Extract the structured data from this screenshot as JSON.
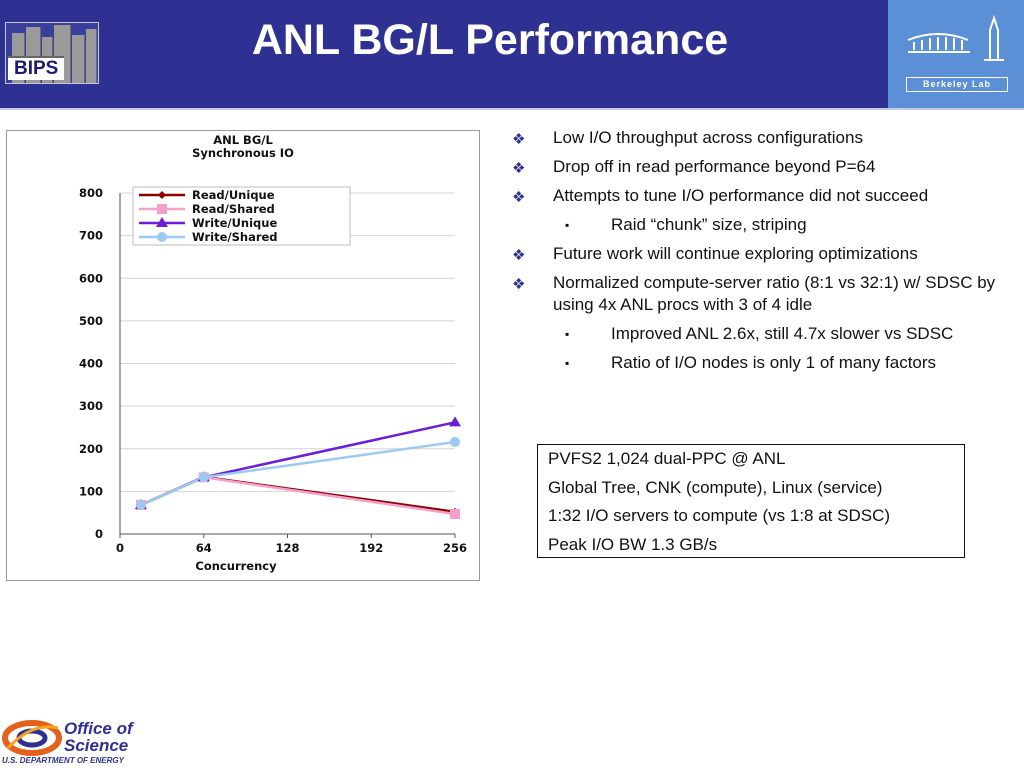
{
  "header": {
    "title": "ANL BG/L Performance",
    "bips_logo_text": "BIPS",
    "berkeley_logo_text": "Berkeley Lab",
    "background": "#2e3192",
    "berkeley_background": "#5b8fd6"
  },
  "chart_data": {
    "type": "line",
    "title": "ANL BG/L",
    "subtitle": "Synchronous IO",
    "xlabel": "Concurrency",
    "ylabel": "",
    "x_ticks": [
      "0",
      "64",
      "128",
      "192",
      "256"
    ],
    "y_ticks": [
      "0",
      "100",
      "200",
      "300",
      "400",
      "500",
      "600",
      "700",
      "800"
    ],
    "xlim": [
      0,
      256
    ],
    "ylim": [
      0,
      800
    ],
    "grid": "horizontal",
    "legend_position": "top-left",
    "x": [
      16,
      64,
      256
    ],
    "series": [
      {
        "name": "Read/Unique",
        "values": [
          68,
          134,
          52
        ],
        "color": "#8b0000",
        "marker": "diamond"
      },
      {
        "name": "Read/Shared",
        "values": [
          68,
          133,
          47
        ],
        "color": "#f5a0c8",
        "marker": "square"
      },
      {
        "name": "Write/Unique",
        "values": [
          68,
          133,
          262
        ],
        "color": "#6a1fd6",
        "marker": "triangle"
      },
      {
        "name": "Write/Shared",
        "values": [
          68,
          133,
          216
        ],
        "color": "#9ccaf0",
        "marker": "circle"
      }
    ]
  },
  "bullets": [
    {
      "level": 1,
      "text": "Low I/O throughput across configurations"
    },
    {
      "level": 1,
      "text": "Drop off in read performance beyond P=64"
    },
    {
      "level": 1,
      "text": "Attempts to tune I/O performance did not succeed"
    },
    {
      "level": 2,
      "text": "Raid “chunk” size, striping"
    },
    {
      "level": 1,
      "text": "Future work will continue exploring optimizations"
    },
    {
      "level": 1,
      "text": "Normalized compute-server ratio (8:1 vs 32:1) w/ SDSC by using 4x ANL procs with 3 of 4 idle"
    },
    {
      "level": 2,
      "text": "Improved ANL 2.6x, still 4.7x slower vs SDSC"
    },
    {
      "level": 2,
      "text": "Ratio of I/O nodes is only 1 of many factors"
    }
  ],
  "bullet_marks": {
    "level1": "❖",
    "level2": "▪"
  },
  "infobox": {
    "lines": [
      "PVFS2 1,024 dual-PPC @ ANL",
      "Global Tree, CNK (compute), Linux (service)",
      "1:32 I/O servers to compute (vs 1:8 at SDSC)",
      "Peak I/O BW 1.3 GB/s"
    ]
  },
  "footer": {
    "logo_text": "Office of Science",
    "department_text": "U.S. DEPARTMENT OF ENERGY"
  }
}
